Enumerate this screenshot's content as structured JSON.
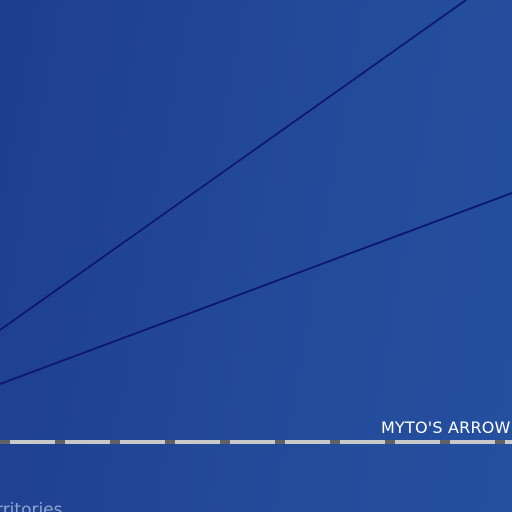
{
  "map": {
    "road_label": "MYTO'S ARROW",
    "region_label": "rritories"
  },
  "colors": {
    "background": "#234a99",
    "trail_line": "#0c1670",
    "road_fill": "#c9c9c9",
    "road_dash": "#5f6368"
  }
}
